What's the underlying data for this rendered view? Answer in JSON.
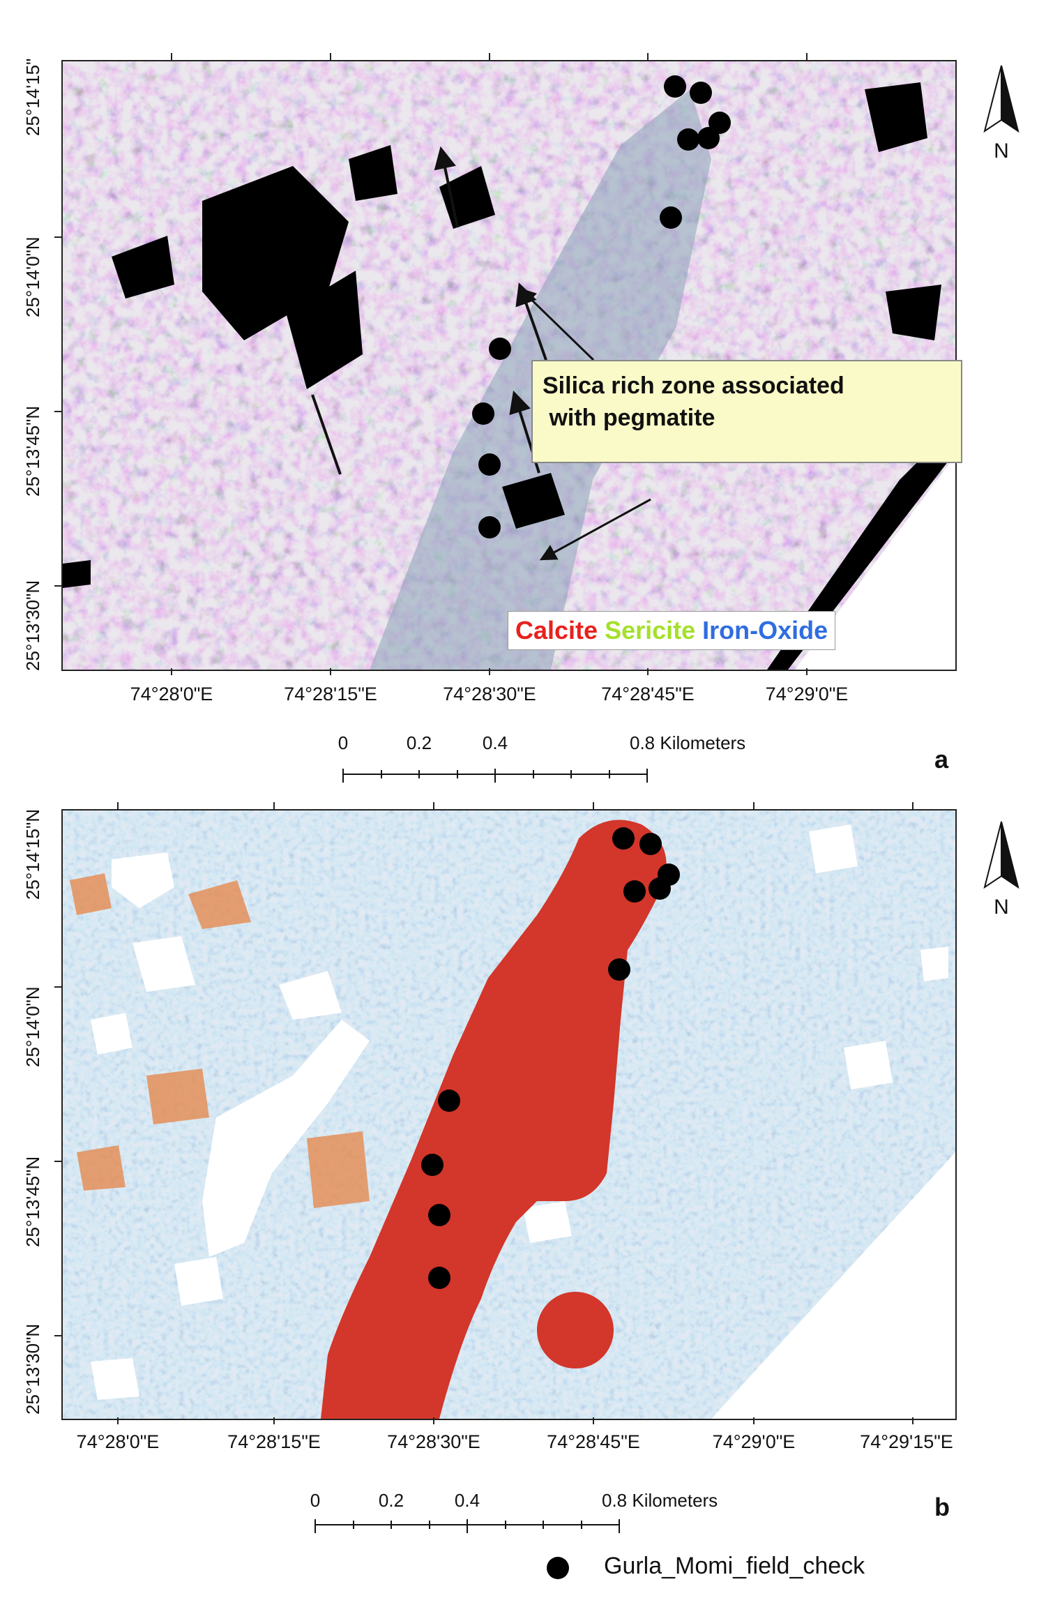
{
  "panel_a": {
    "letter": "a",
    "lat_labels": [
      "25°14'15\"",
      "25°14'0\"N",
      "25°13'45\"N",
      "25°13'30\"N"
    ],
    "lon_labels": [
      "74°28'0\"E",
      "74°28'15\"E",
      "74°28'30\"E",
      "74°28'45\"E",
      "74°29'0\"E"
    ],
    "callout_line1": "Silica rich zone associated",
    "callout_line2": " with pegmatite",
    "legend": {
      "calcite": "Calcite",
      "sericite": "Sericite",
      "iron_oxide": "Iron-Oxide",
      "calcite_color": "#e8211e",
      "sericite_color": "#a4e02a",
      "iron_oxide_color": "#2f6de0"
    },
    "north": "N",
    "scale": {
      "labels": [
        "0",
        "0.2",
        "0.4",
        "0.8 Kilometers"
      ]
    }
  },
  "panel_b": {
    "letter": "b",
    "lat_labels": [
      "25°14'15\"N",
      "25°14'0\"N",
      "25°13'45\"N",
      "25°13'30\"N"
    ],
    "lon_labels": [
      "74°28'0\"E",
      "74°28'15\"E",
      "74°28'30\"E",
      "74°28'45\"E",
      "74°29'0\"E",
      "74°29'15\"E"
    ],
    "north": "N",
    "scale": {
      "labels": [
        "0",
        "0.2",
        "0.4",
        "0.8 Kilometers"
      ]
    },
    "anomaly_color": "#d3362a",
    "background_color": "#8fa9cf"
  },
  "legend_points": {
    "label": "Gurla_Momi_field_check",
    "marker_color": "#000000"
  }
}
